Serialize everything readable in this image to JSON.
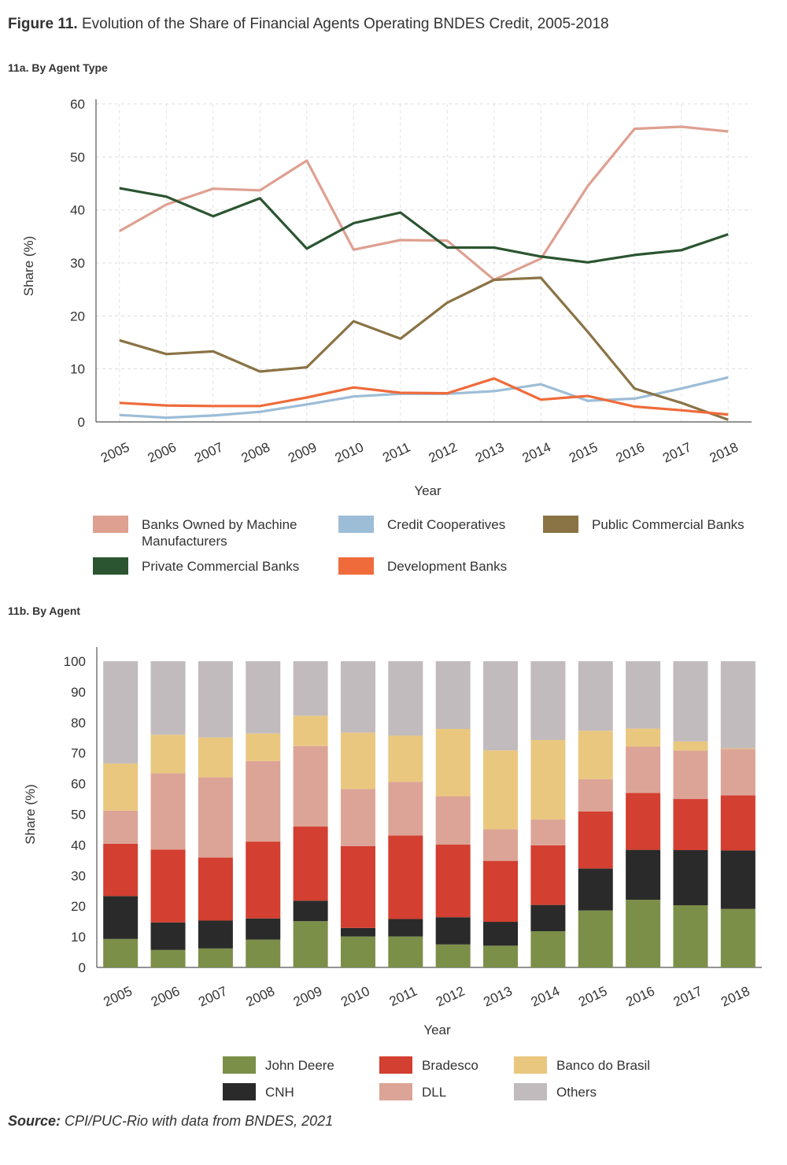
{
  "figure": {
    "label": "Figure 11.",
    "title": "Evolution of the Share of Financial Agents Operating BNDES Credit, 2005-2018",
    "source_label": "Source:",
    "source_text": "CPI/PUC-Rio with data from BNDES, 2021"
  },
  "chart_data": [
    {
      "subtitle": "11a. By Agent Type",
      "type": "line",
      "xlabel": "Year",
      "ylabel": "Share (%)",
      "ylim": [
        0,
        60
      ],
      "yticks": [
        0,
        10,
        20,
        30,
        40,
        50,
        60
      ],
      "grid": true,
      "legend_position": "bottom",
      "x": [
        "2005",
        "2006",
        "2007",
        "2008",
        "2009",
        "2010",
        "2011",
        "2012",
        "2013",
        "2014",
        "2015",
        "2016",
        "2017",
        "2018"
      ],
      "series": [
        {
          "name": "Banks Owned by Machine Manufacturers",
          "legend_lines": [
            "Banks Owned by Machine",
            "Manufacturers"
          ],
          "color": "#dea091",
          "values": [
            36,
            41,
            44,
            43.7,
            49.3,
            32.5,
            34.3,
            34.2,
            26.8,
            30.8,
            44.5,
            55.3,
            55.7,
            54.8
          ]
        },
        {
          "name": "Credit Cooperatives",
          "legend_lines": [
            "Credit Cooperatives"
          ],
          "color": "#9dbdd7",
          "values": [
            1.3,
            0.8,
            1.2,
            1.9,
            3.3,
            4.8,
            5.3,
            5.3,
            5.8,
            7.1,
            4.0,
            4.4,
            6.3,
            8.4
          ]
        },
        {
          "name": "Public Commercial Banks",
          "legend_lines": [
            "Public Commercial Banks"
          ],
          "color": "#8a7345",
          "values": [
            15.4,
            12.8,
            13.3,
            9.5,
            10.3,
            19.0,
            15.7,
            22.5,
            26.8,
            27.2,
            17.0,
            6.3,
            3.6,
            0.4
          ]
        },
        {
          "name": "Private Commercial Banks",
          "legend_lines": [
            "Private Commercial Banks"
          ],
          "color": "#2b5530",
          "values": [
            44.1,
            42.5,
            38.8,
            42.2,
            32.7,
            37.5,
            39.5,
            32.9,
            32.9,
            31.2,
            30.1,
            31.5,
            32.4,
            35.4
          ]
        },
        {
          "name": "Development Banks",
          "legend_lines": [
            "Development Banks"
          ],
          "color": "#ef6b3b",
          "values": [
            3.6,
            3.1,
            3.0,
            3.0,
            4.6,
            6.5,
            5.5,
            5.4,
            8.2,
            4.2,
            4.9,
            2.9,
            2.2,
            1.4
          ]
        }
      ]
    },
    {
      "subtitle": "11b. By Agent",
      "type": "bar",
      "stacked": true,
      "xlabel": "Year",
      "ylabel": "Share (%)",
      "ylim": [
        0,
        100
      ],
      "yticks": [
        0,
        10,
        20,
        30,
        40,
        50,
        60,
        70,
        80,
        90,
        100
      ],
      "grid": false,
      "legend_position": "bottom",
      "categories": [
        "2005",
        "2006",
        "2007",
        "2008",
        "2009",
        "2010",
        "2011",
        "2012",
        "2013",
        "2014",
        "2015",
        "2016",
        "2017",
        "2018"
      ],
      "series": [
        {
          "name": "John Deere",
          "color": "#7b8f48",
          "values": [
            9.3,
            5.7,
            6.2,
            9.1,
            15.1,
            10.1,
            10.1,
            7.5,
            7.1,
            11.8,
            18.6,
            22.1,
            20.3,
            19.1
          ]
        },
        {
          "name": "CNH",
          "color": "#2a2a2a",
          "values": [
            14.0,
            9.0,
            9.1,
            6.9,
            6.7,
            2.8,
            5.7,
            8.9,
            7.8,
            8.6,
            13.7,
            16.3,
            18.0,
            19.1
          ]
        },
        {
          "name": "Bradesco",
          "color": "#d33f30",
          "values": [
            17.1,
            23.8,
            20.6,
            25.1,
            24.2,
            26.7,
            27.3,
            23.7,
            19.9,
            19.5,
            18.6,
            18.6,
            16.7,
            18.0
          ]
        },
        {
          "name": "DLL",
          "color": "#dca496",
          "values": [
            10.8,
            24.9,
            26.2,
            26.3,
            26.3,
            18.7,
            17.5,
            15.8,
            10.3,
            8.4,
            10.6,
            15.1,
            15.8,
            15.2
          ]
        },
        {
          "name": "Banco do Brasil",
          "color": "#eac77f",
          "values": [
            15.4,
            12.6,
            13.0,
            9.0,
            9.9,
            18.4,
            15.1,
            22.0,
            25.8,
            26.0,
            15.8,
            5.9,
            3.0,
            0.2
          ]
        },
        {
          "name": "Others",
          "color": "#c1bbbd",
          "values": [
            33.4,
            24.0,
            24.9,
            23.6,
            17.8,
            23.3,
            24.3,
            22.1,
            29.1,
            25.7,
            22.7,
            22.0,
            26.2,
            28.4
          ]
        }
      ],
      "legend_order": [
        [
          "John Deere",
          "Bradesco",
          "Banco do Brasil"
        ],
        [
          "CNH",
          "DLL",
          "Others"
        ]
      ]
    }
  ]
}
